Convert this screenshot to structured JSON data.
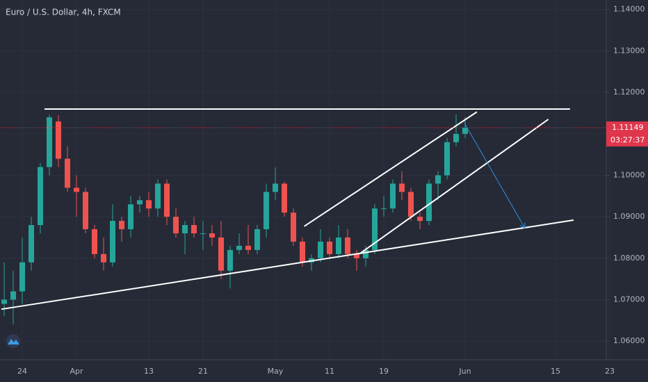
{
  "chart_data": {
    "type": "candlestick",
    "title": "Euro / U.S. Dollar, 4h, FXCM",
    "up_color": "#26a69a",
    "down_color": "#ef5350",
    "categories": [
      null,
      null,
      null,
      "24",
      null,
      null,
      null,
      null,
      null,
      "Apr",
      null,
      null,
      null,
      null,
      null,
      null,
      null,
      "13",
      null,
      null,
      null,
      null,
      null,
      "21",
      null,
      null,
      null,
      null,
      null,
      null,
      null,
      "May",
      null,
      null,
      null,
      null,
      null,
      "11",
      null,
      null,
      null,
      null,
      null,
      "19",
      null,
      null,
      null,
      null,
      null,
      null,
      null,
      null,
      "Jun",
      null,
      null,
      null,
      null,
      null,
      null,
      null,
      null,
      null,
      "15",
      null,
      null,
      null,
      null,
      null,
      "23"
    ],
    "candles": [
      [
        1.07,
        1.078,
        1.0636,
        1.069
      ],
      [
        1.069,
        1.079,
        1.066,
        1.07
      ],
      [
        1.07,
        1.077,
        1.064,
        1.072
      ],
      [
        1.072,
        1.085,
        1.069,
        1.079
      ],
      [
        1.079,
        1.09,
        1.077,
        1.088
      ],
      [
        1.088,
        1.103,
        1.086,
        1.102
      ],
      [
        1.102,
        1.1147,
        1.1,
        1.114
      ],
      [
        1.113,
        1.1145,
        1.102,
        1.104
      ],
      [
        1.104,
        1.107,
        1.096,
        1.097
      ],
      [
        1.097,
        1.1,
        1.09,
        1.096
      ],
      [
        1.096,
        1.097,
        1.086,
        1.087
      ],
      [
        1.087,
        1.088,
        1.08,
        1.081
      ],
      [
        1.081,
        1.085,
        1.077,
        1.079
      ],
      [
        1.079,
        1.093,
        1.078,
        1.089
      ],
      [
        1.089,
        1.09,
        1.084,
        1.087
      ],
      [
        1.087,
        1.095,
        1.085,
        1.093
      ],
      [
        1.093,
        1.095,
        1.091,
        1.094
      ],
      [
        1.094,
        1.096,
        1.09,
        1.092
      ],
      [
        1.092,
        1.099,
        1.09,
        1.098
      ],
      [
        1.098,
        1.099,
        1.088,
        1.09
      ],
      [
        1.09,
        1.092,
        1.085,
        1.086
      ],
      [
        1.086,
        1.089,
        1.081,
        1.088
      ],
      [
        1.088,
        1.09,
        1.085,
        1.086
      ],
      [
        1.086,
        1.089,
        1.082,
        1.086
      ],
      [
        1.086,
        1.088,
        1.083,
        1.085
      ],
      [
        1.085,
        1.089,
        1.075,
        1.077
      ],
      [
        1.077,
        1.083,
        1.0727,
        1.082
      ],
      [
        1.082,
        1.086,
        1.081,
        1.083
      ],
      [
        1.083,
        1.088,
        1.081,
        1.082
      ],
      [
        1.082,
        1.088,
        1.081,
        1.087
      ],
      [
        1.087,
        1.098,
        1.085,
        1.096
      ],
      [
        1.096,
        1.1019,
        1.094,
        1.098
      ],
      [
        1.098,
        1.0985,
        1.09,
        1.091
      ],
      [
        1.091,
        1.092,
        1.083,
        1.084
      ],
      [
        1.084,
        1.085,
        1.078,
        1.079
      ],
      [
        1.079,
        1.081,
        1.077,
        1.08
      ],
      [
        1.08,
        1.087,
        1.079,
        1.084
      ],
      [
        1.084,
        1.085,
        1.08,
        1.081
      ],
      [
        1.081,
        1.088,
        1.08,
        1.085
      ],
      [
        1.085,
        1.087,
        1.08,
        1.081
      ],
      [
        1.081,
        1.082,
        1.077,
        1.08
      ],
      [
        1.08,
        1.083,
        1.078,
        1.082
      ],
      [
        1.082,
        1.093,
        1.081,
        1.092
      ],
      [
        1.092,
        1.095,
        1.09,
        1.092
      ],
      [
        1.092,
        1.099,
        1.091,
        1.098
      ],
      [
        1.098,
        1.101,
        1.094,
        1.096
      ],
      [
        1.096,
        1.097,
        1.089,
        1.09
      ],
      [
        1.09,
        1.091,
        1.087,
        1.089
      ],
      [
        1.089,
        1.099,
        1.088,
        1.098
      ],
      [
        1.098,
        1.101,
        1.094,
        1.1
      ],
      [
        1.1,
        1.109,
        1.099,
        1.108
      ],
      [
        1.108,
        1.1147,
        1.107,
        1.11
      ],
      [
        1.11,
        1.114,
        1.109,
        1.11149
      ]
    ],
    "ylim": [
      1.0555,
      1.1423
    ],
    "yticks": [
      {
        "value": 1.06,
        "label": "1.06000"
      },
      {
        "value": 1.07,
        "label": "1.07000"
      },
      {
        "value": 1.08,
        "label": "1.08000"
      },
      {
        "value": 1.09,
        "label": "1.09000"
      },
      {
        "value": 1.1,
        "label": "1.10000"
      },
      {
        "value": 1.11,
        "label": "1.11000"
      },
      {
        "value": 1.12,
        "label": "1.12000"
      },
      {
        "value": 1.13,
        "label": "1.13000"
      },
      {
        "value": 1.14,
        "label": "1.14000"
      }
    ],
    "last_price": {
      "value": 1.11149,
      "label": "1.11149",
      "countdown": "03:27:37",
      "color": "#e0364c"
    },
    "trendlines": [
      {
        "from": [
          5.46,
          1.116
        ],
        "to": [
          63.6,
          1.116
        ],
        "color": "#ffffff"
      },
      {
        "from": [
          0.69,
          1.0677
        ],
        "to": [
          64.0,
          1.0892
        ],
        "color": "#ffffff"
      },
      {
        "from": [
          34.2,
          1.0877
        ],
        "to": [
          53.3,
          1.1153
        ],
        "color": "#ffffff"
      },
      {
        "from": [
          40.4,
          1.0812
        ],
        "to": [
          61.2,
          1.1135
        ],
        "color": "#ffffff"
      }
    ],
    "arrow": {
      "from": [
        51.9,
        1.1127
      ],
      "to": [
        58.6,
        1.0873
      ],
      "color": "#2f8fe0"
    },
    "grid": true
  }
}
